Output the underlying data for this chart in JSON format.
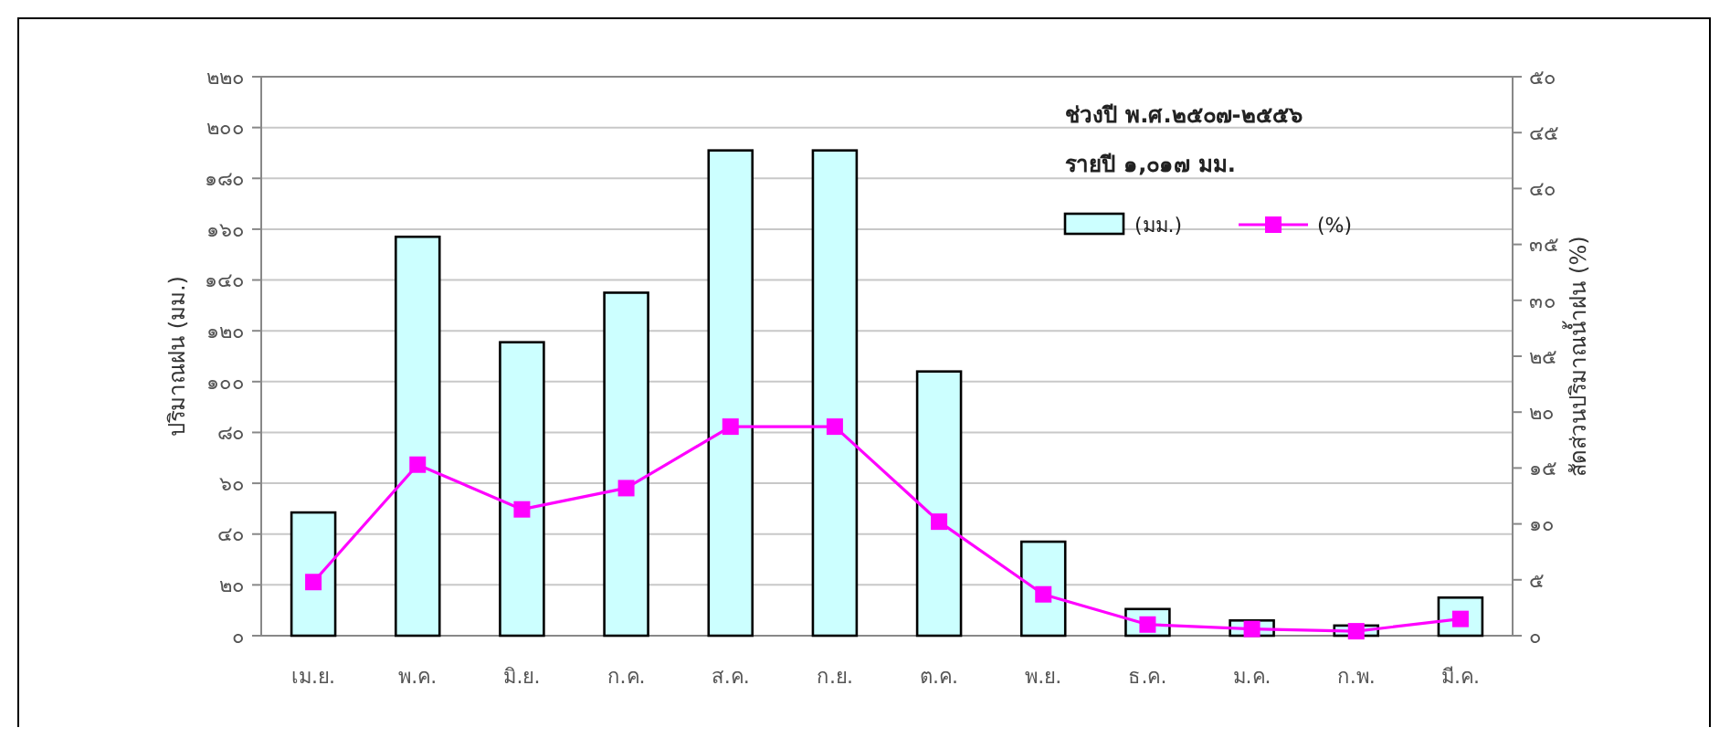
{
  "chart_data": {
    "type": "bar",
    "categories": [
      "เม.ย.",
      "พ.ค.",
      "มิ.ย.",
      "ก.ค.",
      "ส.ค.",
      "ก.ย.",
      "ต.ค.",
      "พ.ย.",
      "ธ.ค.",
      "ม.ค.",
      "ก.พ.",
      "มี.ค."
    ],
    "series": [
      {
        "name": "(มม.)",
        "color": "#ccffff",
        "values": [
          48.5,
          157,
          115.5,
          135,
          191,
          191,
          104,
          37,
          10.5,
          6,
          4,
          15
        ]
      },
      {
        "name": "(%)",
        "type": "line",
        "axis": "y2",
        "color": "#ff00ff",
        "values": [
          4.8,
          15.3,
          11.3,
          13.2,
          18.7,
          18.7,
          10.2,
          3.7,
          1.0,
          0.6,
          0.4,
          1.5
        ]
      }
    ],
    "ylabel": "ปริมาณฝน (มม.)",
    "y2label": "สัดส่วนปริมาณน้ำฝน (%)",
    "annotations": [
      "ช่วงปี พ.ศ.๒๕๐๗-๒๕๕๖",
      "รายปี ๑,๐๑๗ มม."
    ],
    "ylim": [
      0,
      220
    ],
    "yticks": [
      {
        "value": 0,
        "label": "๐"
      },
      {
        "value": 20,
        "label": "๒๐"
      },
      {
        "value": 40,
        "label": "๔๐"
      },
      {
        "value": 60,
        "label": "๖๐"
      },
      {
        "value": 80,
        "label": "๘๐"
      },
      {
        "value": 100,
        "label": "๑๐๐"
      },
      {
        "value": 120,
        "label": "๑๒๐"
      },
      {
        "value": 140,
        "label": "๑๔๐"
      },
      {
        "value": 160,
        "label": "๑๖๐"
      },
      {
        "value": 180,
        "label": "๑๘๐"
      },
      {
        "value": 200,
        "label": "๒๐๐"
      },
      {
        "value": 220,
        "label": "๒๒๐"
      }
    ],
    "y2lim": [
      0,
      50
    ],
    "y2ticks": [
      {
        "value": 0,
        "label": "๐"
      },
      {
        "value": 5,
        "label": "๕"
      },
      {
        "value": 10,
        "label": "๑๐"
      },
      {
        "value": 15,
        "label": "๑๕"
      },
      {
        "value": 20,
        "label": "๒๐"
      },
      {
        "value": 25,
        "label": "๒๕"
      },
      {
        "value": 30,
        "label": "๓๐"
      },
      {
        "value": 35,
        "label": "๓๕"
      },
      {
        "value": 40,
        "label": "๔๐"
      },
      {
        "value": 45,
        "label": "๔๕"
      },
      {
        "value": 50,
        "label": "๕๐"
      }
    ],
    "grid": "y",
    "legend": "top right",
    "marker": "square",
    "line_style": "solid"
  }
}
